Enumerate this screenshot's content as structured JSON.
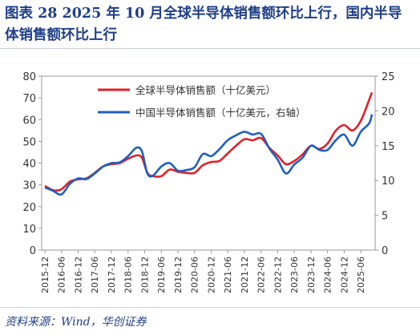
{
  "title": "图表 28   2025 年 10 月全球半导体销售额环比上行，国内半导体销售额环比上行",
  "source": "资料来源：Wind，华创证券",
  "chart_data": {
    "type": "line",
    "y_left": {
      "min": 0,
      "max": 80,
      "ticks": [
        0,
        10,
        20,
        30,
        40,
        50,
        60,
        70,
        80
      ]
    },
    "y_right": {
      "min": 0,
      "max": 25,
      "ticks": [
        0,
        5,
        10,
        15,
        20,
        25
      ]
    },
    "x_ticks": [
      "2015-12",
      "2016-06",
      "2016-12",
      "2017-06",
      "2017-12",
      "2018-06",
      "2018-12",
      "2019-06",
      "2019-12",
      "2020-06",
      "2020-12",
      "2021-06",
      "2021-12",
      "2022-06",
      "2022-12",
      "2023-06",
      "2023-12",
      "2024-06",
      "2024-12",
      "2025-06"
    ],
    "grid": false,
    "legend_position": "top",
    "series": [
      {
        "name": "全球半导体销售额（十亿美元）",
        "axis": "left",
        "color": "#e3202a",
        "values": [
          {
            "x": "2015-12",
            "y": 29.5
          },
          {
            "x": "2016-03",
            "y": 27.5
          },
          {
            "x": "2016-06",
            "y": 28.0
          },
          {
            "x": "2016-09",
            "y": 31.5
          },
          {
            "x": "2016-12",
            "y": 32.5
          },
          {
            "x": "2017-03",
            "y": 33.0
          },
          {
            "x": "2017-06",
            "y": 35.5
          },
          {
            "x": "2017-09",
            "y": 38.5
          },
          {
            "x": "2017-12",
            "y": 39.5
          },
          {
            "x": "2018-03",
            "y": 40.0
          },
          {
            "x": "2018-06",
            "y": 42.0
          },
          {
            "x": "2018-09",
            "y": 43.5
          },
          {
            "x": "2018-11",
            "y": 42.5
          },
          {
            "x": "2019-01",
            "y": 35.5
          },
          {
            "x": "2019-03",
            "y": 34.0
          },
          {
            "x": "2019-06",
            "y": 34.0
          },
          {
            "x": "2019-09",
            "y": 37.0
          },
          {
            "x": "2019-12",
            "y": 36.0
          },
          {
            "x": "2020-03",
            "y": 35.5
          },
          {
            "x": "2020-06",
            "y": 35.5
          },
          {
            "x": "2020-09",
            "y": 39.0
          },
          {
            "x": "2020-12",
            "y": 40.5
          },
          {
            "x": "2021-03",
            "y": 41.0
          },
          {
            "x": "2021-06",
            "y": 44.5
          },
          {
            "x": "2021-09",
            "y": 48.0
          },
          {
            "x": "2021-12",
            "y": 51.0
          },
          {
            "x": "2022-03",
            "y": 50.5
          },
          {
            "x": "2022-06",
            "y": 51.5
          },
          {
            "x": "2022-09",
            "y": 47.0
          },
          {
            "x": "2022-12",
            "y": 43.5
          },
          {
            "x": "2023-03",
            "y": 39.5
          },
          {
            "x": "2023-06",
            "y": 41.0
          },
          {
            "x": "2023-09",
            "y": 44.0
          },
          {
            "x": "2023-12",
            "y": 48.0
          },
          {
            "x": "2024-03",
            "y": 46.5
          },
          {
            "x": "2024-06",
            "y": 49.0
          },
          {
            "x": "2024-09",
            "y": 55.0
          },
          {
            "x": "2024-12",
            "y": 57.5
          },
          {
            "x": "2025-03",
            "y": 55.0
          },
          {
            "x": "2025-06",
            "y": 59.5
          },
          {
            "x": "2025-09",
            "y": 69.0
          },
          {
            "x": "2025-10",
            "y": 72.5
          }
        ]
      },
      {
        "name": "中国半导体销售额（十亿美元，右轴）",
        "axis": "right",
        "color": "#1f5fbf",
        "values": [
          {
            "x": "2015-12",
            "y": 9.0
          },
          {
            "x": "2016-03",
            "y": 8.5
          },
          {
            "x": "2016-06",
            "y": 8.0
          },
          {
            "x": "2016-09",
            "y": 9.5
          },
          {
            "x": "2016-12",
            "y": 10.3
          },
          {
            "x": "2017-03",
            "y": 10.2
          },
          {
            "x": "2017-06",
            "y": 11.0
          },
          {
            "x": "2017-09",
            "y": 12.0
          },
          {
            "x": "2017-12",
            "y": 12.5
          },
          {
            "x": "2018-03",
            "y": 12.6
          },
          {
            "x": "2018-06",
            "y": 13.5
          },
          {
            "x": "2018-09",
            "y": 14.7
          },
          {
            "x": "2018-11",
            "y": 14.2
          },
          {
            "x": "2019-01",
            "y": 11.0
          },
          {
            "x": "2019-03",
            "y": 10.7
          },
          {
            "x": "2019-06",
            "y": 12.0
          },
          {
            "x": "2019-09",
            "y": 12.5
          },
          {
            "x": "2019-12",
            "y": 11.4
          },
          {
            "x": "2020-03",
            "y": 11.5
          },
          {
            "x": "2020-06",
            "y": 11.9
          },
          {
            "x": "2020-09",
            "y": 13.8
          },
          {
            "x": "2020-12",
            "y": 13.5
          },
          {
            "x": "2021-03",
            "y": 14.5
          },
          {
            "x": "2021-06",
            "y": 15.8
          },
          {
            "x": "2021-09",
            "y": 16.5
          },
          {
            "x": "2021-12",
            "y": 17.0
          },
          {
            "x": "2022-03",
            "y": 16.6
          },
          {
            "x": "2022-06",
            "y": 16.7
          },
          {
            "x": "2022-09",
            "y": 14.6
          },
          {
            "x": "2022-12",
            "y": 13.0
          },
          {
            "x": "2023-03",
            "y": 11.0
          },
          {
            "x": "2023-06",
            "y": 12.3
          },
          {
            "x": "2023-09",
            "y": 13.3
          },
          {
            "x": "2023-12",
            "y": 15.0
          },
          {
            "x": "2024-03",
            "y": 14.4
          },
          {
            "x": "2024-06",
            "y": 14.4
          },
          {
            "x": "2024-09",
            "y": 15.8
          },
          {
            "x": "2024-12",
            "y": 16.6
          },
          {
            "x": "2025-03",
            "y": 15.0
          },
          {
            "x": "2025-06",
            "y": 17.0
          },
          {
            "x": "2025-09",
            "y": 18.2
          },
          {
            "x": "2025-10",
            "y": 19.5
          }
        ]
      }
    ]
  }
}
